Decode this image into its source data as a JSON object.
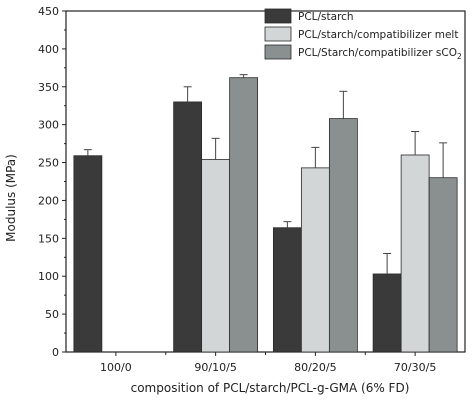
{
  "chart_data": {
    "type": "bar",
    "xlabel": "composition of PCL/starch/PCL-g-GMA (6% FD)",
    "ylabel": "Modulus (MPa)",
    "ylim": [
      0,
      450
    ],
    "yticks": [
      0,
      50,
      100,
      150,
      200,
      250,
      300,
      350,
      400,
      450
    ],
    "categories": [
      "100/0",
      "90/10/5",
      "80/20/5",
      "70/30/5"
    ],
    "grid": false,
    "legend_position": "top-right",
    "series": [
      {
        "name": "PCL/starch",
        "color": "#3a3a3a",
        "values": [
          259,
          330,
          164,
          103
        ],
        "errors": [
          8,
          20,
          8,
          27
        ]
      },
      {
        "name": "PCL/starch/compatibilizer melt",
        "color": "#d3d6d6",
        "values": [
          null,
          254,
          243,
          260
        ],
        "errors": [
          null,
          28,
          27,
          31
        ]
      },
      {
        "name": "PCL/Starch/compatibilizer sCO",
        "name_subscript": "2",
        "color": "#8a9090",
        "values": [
          null,
          362,
          308,
          230
        ],
        "errors": [
          null,
          4,
          36,
          46
        ]
      }
    ]
  }
}
